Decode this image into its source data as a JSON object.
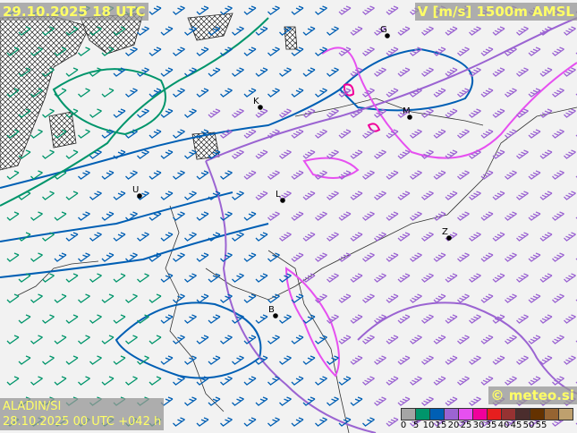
{
  "header": {
    "valid_time": "29.10.2025 18 UTC",
    "field": "V [m/s] 1500m AMSL"
  },
  "footer": {
    "model": "ALADIN/SI",
    "run": "28.10.2025 00 UTC +042 h",
    "copyright": "© meteo.si"
  },
  "legend": {
    "ticks": [
      "0",
      "5",
      "10",
      "15",
      "20",
      "25",
      "30",
      "35",
      "40",
      "45",
      "50",
      "55"
    ],
    "colors": [
      "#a5a5a5",
      "#00956b",
      "#005fb4",
      "#9b64d2",
      "#e650f0",
      "#f0009b",
      "#e61e1e",
      "#963232",
      "#4b2d2d",
      "#643200",
      "#966432",
      "#bea06e"
    ]
  },
  "cities": [
    {
      "name": "G"
    },
    {
      "name": "K"
    },
    {
      "name": "M"
    },
    {
      "name": "U"
    },
    {
      "name": "L"
    },
    {
      "name": "Z"
    },
    {
      "name": "B"
    }
  ],
  "icons": {
    "wind_barb": "wind-barb-icon",
    "city_marker": "city-dot-icon",
    "terrain_hatch": "terrain-hatch"
  }
}
